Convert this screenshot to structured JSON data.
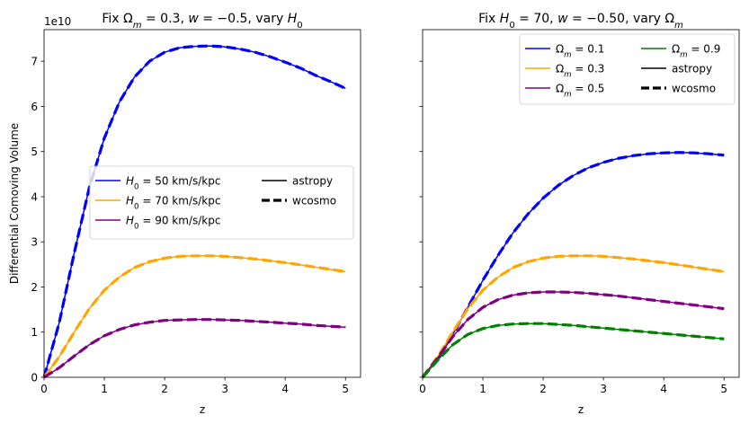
{
  "chart_data": [
    {
      "type": "line",
      "title_parts": {
        "prefix": "Fix ",
        "sym": "Ω",
        "sub": "m",
        "mid": " = 0.3, ",
        "w": "w",
        "wval": " = −0.5, vary ",
        "h": "H",
        "hsub": "0"
      },
      "title": "Fix Ωm = 0.3, w = −0.5, vary H0",
      "xlabel": "z",
      "ylabel": "Differential Comoving Volume",
      "offset_label": "1e10",
      "xlim": [
        0,
        5.25
      ],
      "ylim": [
        0,
        7.7
      ],
      "x_ticks": [
        "0",
        "1",
        "2",
        "3",
        "4",
        "5"
      ],
      "y_ticks": [
        "0",
        "1",
        "2",
        "3",
        "4",
        "5",
        "6",
        "7"
      ],
      "legend": [
        {
          "label": "H0 = 50 km/s/kpc",
          "sym": "H",
          "sub": "0",
          "rest": " = 50 km/s/kpc",
          "color": "#0000ff",
          "style": "solid"
        },
        {
          "label": "H0 = 70 km/s/kpc",
          "sym": "H",
          "sub": "0",
          "rest": " = 70 km/s/kpc",
          "color": "#ffa500",
          "style": "solid"
        },
        {
          "label": "H0 = 90 km/s/kpc",
          "sym": "H",
          "sub": "0",
          "rest": " = 90 km/s/kpc",
          "color": "#800080",
          "style": "solid"
        },
        {
          "label": "astropy",
          "color": "#000000",
          "style": "solid"
        },
        {
          "label": "wcosmo",
          "color": "#000000",
          "style": "dashed"
        }
      ],
      "x": [
        0,
        0.25,
        0.5,
        0.75,
        1,
        1.25,
        1.5,
        1.75,
        2,
        2.25,
        2.5,
        2.75,
        3,
        3.25,
        3.5,
        3.75,
        4,
        4.25,
        4.5,
        4.75,
        5
      ],
      "series": [
        {
          "name": "H0 = 50 km/s/kpc",
          "color": "#0000ff",
          "values": [
            0,
            1.2,
            2.75,
            4.2,
            5.3,
            6.1,
            6.65,
            7.0,
            7.2,
            7.3,
            7.33,
            7.34,
            7.32,
            7.27,
            7.2,
            7.1,
            6.98,
            6.85,
            6.69,
            6.55,
            6.4
          ]
        },
        {
          "name": "H0 = 70 km/s/kpc",
          "color": "#ffa500",
          "values": [
            0,
            0.45,
            1.0,
            1.52,
            1.93,
            2.22,
            2.43,
            2.56,
            2.64,
            2.68,
            2.69,
            2.69,
            2.68,
            2.65,
            2.62,
            2.58,
            2.54,
            2.49,
            2.44,
            2.39,
            2.34
          ]
        },
        {
          "name": "H0 = 90 km/s/kpc",
          "color": "#800080",
          "values": [
            0,
            0.21,
            0.47,
            0.72,
            0.92,
            1.06,
            1.16,
            1.22,
            1.26,
            1.27,
            1.28,
            1.28,
            1.27,
            1.26,
            1.24,
            1.22,
            1.2,
            1.18,
            1.15,
            1.13,
            1.11
          ]
        }
      ]
    },
    {
      "type": "line",
      "title_parts": {
        "prefix": "Fix ",
        "h": "H",
        "hsub": "0",
        "mid": " = 70, ",
        "w": "w",
        "wval": " = −0.50, vary ",
        "sym": "Ω",
        "sub": "m"
      },
      "title": "Fix H0 = 70, w = −0.50, vary Ωm",
      "xlabel": "z",
      "xlim": [
        0,
        5.25
      ],
      "ylim": [
        0,
        7.7
      ],
      "x_ticks": [
        "0",
        "1",
        "2",
        "3",
        "4",
        "5"
      ],
      "legend": [
        {
          "label": "Ωm = 0.1",
          "sym": "Ω",
          "sub": "m",
          "rest": " = 0.1",
          "color": "#0000ff",
          "style": "solid"
        },
        {
          "label": "Ωm = 0.3",
          "sym": "Ω",
          "sub": "m",
          "rest": " = 0.3",
          "color": "#ffa500",
          "style": "solid"
        },
        {
          "label": "Ωm = 0.5",
          "sym": "Ω",
          "sub": "m",
          "rest": " = 0.5",
          "color": "#800080",
          "style": "solid"
        },
        {
          "label": "Ωm = 0.9",
          "sym": "Ω",
          "sub": "m",
          "rest": " = 0.9",
          "color": "#008000",
          "style": "solid"
        },
        {
          "label": "astropy",
          "color": "#000000",
          "style": "solid"
        },
        {
          "label": "wcosmo",
          "color": "#000000",
          "style": "dashed"
        }
      ],
      "x": [
        0,
        0.25,
        0.5,
        0.75,
        1,
        1.25,
        1.5,
        1.75,
        2,
        2.25,
        2.5,
        2.75,
        3,
        3.25,
        3.5,
        3.75,
        4,
        4.25,
        4.5,
        4.75,
        5
      ],
      "series": [
        {
          "name": "Ωm = 0.1",
          "color": "#0000ff",
          "values": [
            0,
            0.38,
            0.95,
            1.55,
            2.15,
            2.7,
            3.2,
            3.62,
            3.97,
            4.25,
            4.47,
            4.64,
            4.76,
            4.85,
            4.91,
            4.95,
            4.97,
            4.98,
            4.97,
            4.95,
            4.92
          ]
        },
        {
          "name": "Ωm = 0.3",
          "color": "#ffa500",
          "values": [
            0,
            0.45,
            1.0,
            1.52,
            1.93,
            2.22,
            2.43,
            2.56,
            2.64,
            2.68,
            2.69,
            2.69,
            2.68,
            2.65,
            2.62,
            2.58,
            2.54,
            2.49,
            2.44,
            2.39,
            2.34
          ]
        },
        {
          "name": "Ωm = 0.5",
          "color": "#800080",
          "values": [
            0,
            0.43,
            0.9,
            1.28,
            1.55,
            1.72,
            1.82,
            1.87,
            1.89,
            1.89,
            1.88,
            1.86,
            1.83,
            1.8,
            1.76,
            1.72,
            1.68,
            1.64,
            1.6,
            1.56,
            1.52
          ]
        },
        {
          "name": "Ωm = 0.9",
          "color": "#008000",
          "values": [
            0,
            0.38,
            0.72,
            0.95,
            1.08,
            1.15,
            1.18,
            1.19,
            1.19,
            1.17,
            1.15,
            1.12,
            1.09,
            1.06,
            1.03,
            1.0,
            0.97,
            0.94,
            0.91,
            0.88,
            0.85
          ]
        }
      ]
    }
  ]
}
